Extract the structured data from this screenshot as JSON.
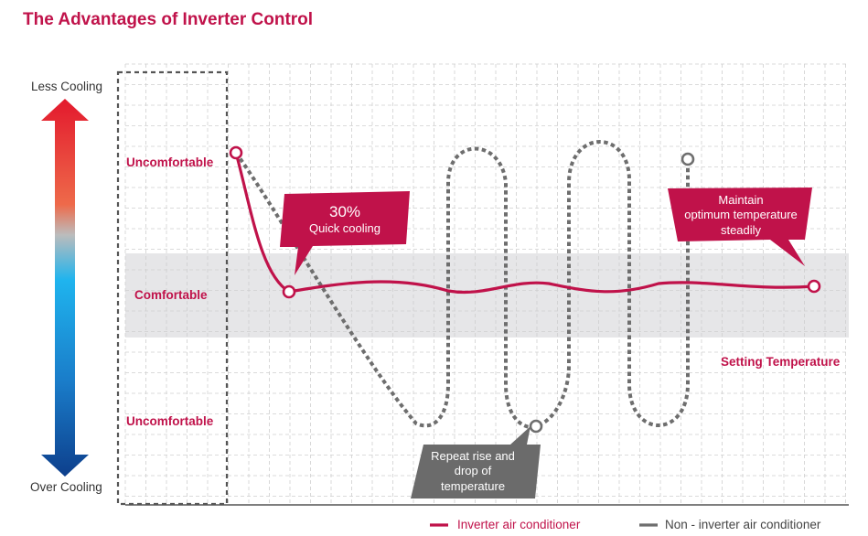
{
  "title": "The Advantages of Inverter Control",
  "axis": {
    "top_label": "Less Cooling",
    "bottom_label": "Over Cooling"
  },
  "zones": {
    "upper": "Uncomfortable",
    "middle": "Comfortable",
    "lower": "Uncomfortable"
  },
  "setting_temperature": "Setting Temperature",
  "callouts": {
    "quick_cooling": {
      "percent": "30%",
      "text": "Quick cooling"
    },
    "maintain": {
      "line1": "Maintain",
      "line2": "optimum temperature",
      "line3": "steadily"
    },
    "repeat": {
      "line1": "Repeat rise and",
      "line2": "drop of",
      "line3": "temperature"
    }
  },
  "legend": {
    "inverter": "Inverter air conditioner",
    "non_inverter": "Non - inverter air conditioner"
  },
  "colors": {
    "accent": "#c0124a",
    "non_inverter": "#6e6e6e",
    "comfort_band": "#e6e6e8",
    "callout_gray": "#6b6b6b"
  }
}
